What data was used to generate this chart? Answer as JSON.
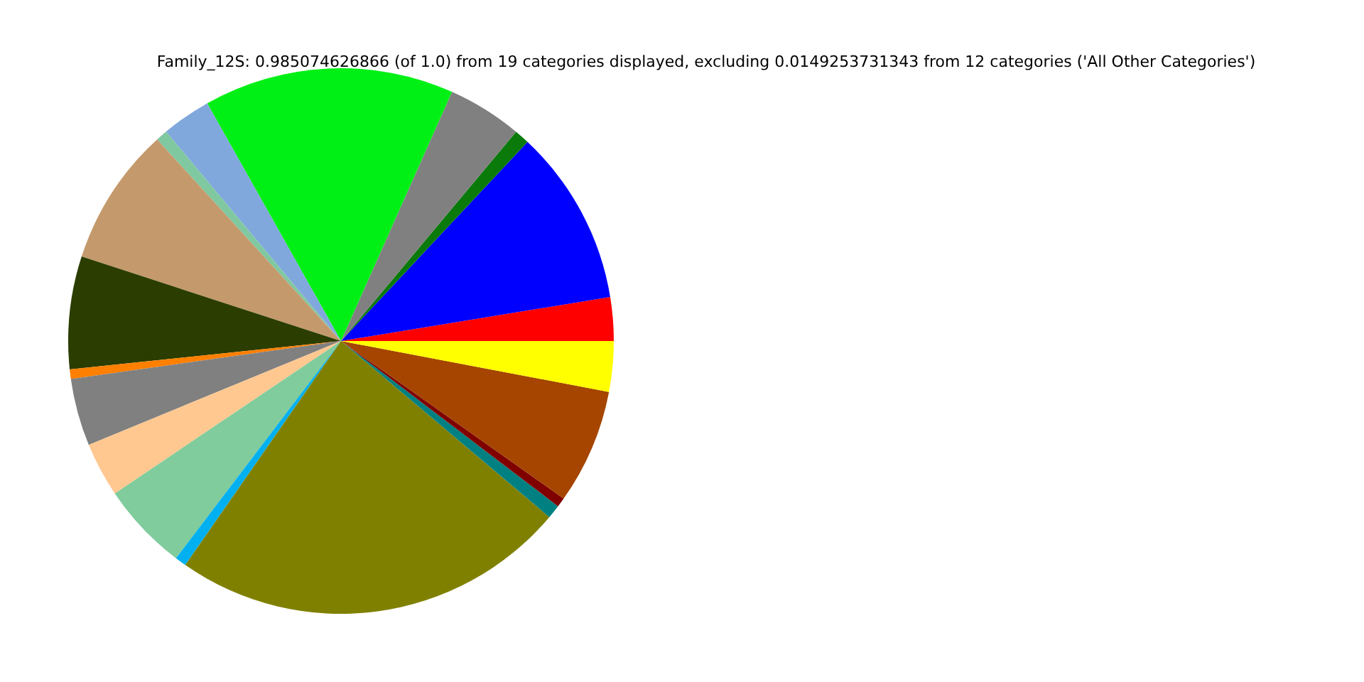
{
  "chart_data": {
    "type": "pie",
    "title": "Family_12S: 0.985074626866 (of 1.0) from 19 categories displayed, excluding 0.0149253731343 from 12 categories ('All Other Categories')",
    "categories": [
      null,
      null,
      null,
      null,
      null,
      null,
      null,
      null,
      null,
      null,
      null,
      null,
      null,
      null,
      null,
      null,
      null,
      null,
      null
    ],
    "values": [
      2.58,
      10.44,
      0.89,
      4.42,
      14.83,
      2.92,
      0.69,
      8.22,
      6.67,
      0.56,
      4.0,
      3.22,
      5.22,
      0.67,
      23.5,
      0.81,
      0.56,
      6.81,
      2.99
    ],
    "colors": [
      "#ff0000",
      "#0000ff",
      "#0a7a0a",
      "#808080",
      "#00f015",
      "#80a8dc",
      "#80c8a0",
      "#c49a6c",
      "#2b3d00",
      "#ff7f00",
      "#808080",
      "#ffc890",
      "#80cc9c",
      "#00b0f0",
      "#808000",
      "#008080",
      "#800000",
      "#a54500",
      "#ffff00"
    ]
  }
}
